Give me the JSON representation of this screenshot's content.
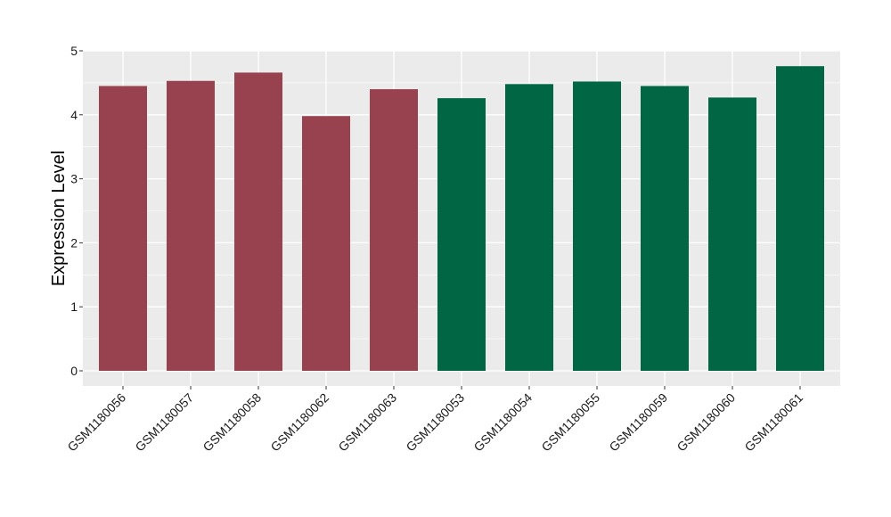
{
  "chart_data": {
    "type": "bar",
    "title": "",
    "xlabel": "",
    "ylabel": "Expression Level",
    "ylim": [
      0,
      5
    ],
    "yticks": [
      0,
      1,
      2,
      3,
      4,
      5
    ],
    "grid": true,
    "categories": [
      "GSM1180056",
      "GSM1180057",
      "GSM1180058",
      "GSM1180062",
      "GSM1180063",
      "GSM1180053",
      "GSM1180054",
      "GSM1180055",
      "GSM1180059",
      "GSM1180060",
      "GSM1180061"
    ],
    "values": [
      4.45,
      4.53,
      4.66,
      3.98,
      4.4,
      4.26,
      4.48,
      4.52,
      4.45,
      4.27,
      4.76
    ],
    "bar_colors": [
      "#98414f",
      "#98414f",
      "#98414f",
      "#98414f",
      "#98414f",
      "#006644",
      "#006644",
      "#006644",
      "#006644",
      "#006644",
      "#006644"
    ],
    "panel_background": "#ebebeb",
    "gridline_color": "#ffffff"
  }
}
